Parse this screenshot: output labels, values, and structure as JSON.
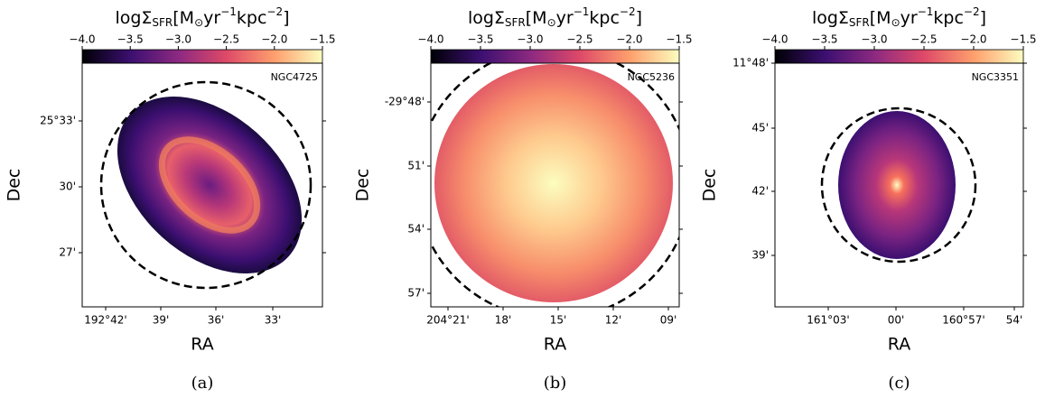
{
  "panels": [
    {
      "colorbar_label": [
        {
          "text": "logΣ"
        },
        {
          "text": "SFR",
          "style": "sub"
        },
        {
          "text": "[M"
        },
        {
          "text": "⊙",
          "style": "sub"
        },
        {
          "text": "yr"
        },
        {
          "text": "−1",
          "style": "sup"
        },
        {
          "text": "kpc"
        },
        {
          "text": "−2",
          "style": "sup"
        },
        {
          "text": "]"
        }
      ],
      "colorbar": {
        "range": [
          -4,
          -1.5
        ],
        "ticks": [
          {
            "value": -4,
            "label": "−4.0"
          },
          {
            "value": -3.5,
            "label": "−3.5"
          },
          {
            "value": -3,
            "label": "−3.0"
          },
          {
            "value": -2.5,
            "label": "−2.5"
          },
          {
            "value": -2,
            "label": "−2.0"
          },
          {
            "value": -1.5,
            "label": "−1.5"
          }
        ]
      },
      "name": "NGC4725",
      "yticks": [
        "25°33'",
        "30'",
        "27'"
      ],
      "xticks": [
        "192°42'",
        "39'",
        "36'",
        "33'"
      ],
      "ylabel": "Dec",
      "xlabel": "RA",
      "caption": "(a)"
    },
    {
      "colorbar_label": [
        {
          "text": "logΣ"
        },
        {
          "text": "SFR",
          "style": "sub"
        },
        {
          "text": "[M"
        },
        {
          "text": "⊙",
          "style": "sub"
        },
        {
          "text": "yr"
        },
        {
          "text": "−1",
          "style": "sup"
        },
        {
          "text": "kpc"
        },
        {
          "text": "−2",
          "style": "sup"
        },
        {
          "text": "]"
        }
      ],
      "colorbar": {
        "range": [
          -4,
          -1.5
        ],
        "ticks": [
          {
            "value": -4,
            "label": "−4.0"
          },
          {
            "value": -3.5,
            "label": "−3.5"
          },
          {
            "value": -3,
            "label": "−3.0"
          },
          {
            "value": -2.5,
            "label": "−2.5"
          },
          {
            "value": -2,
            "label": "−2.0"
          },
          {
            "value": -1.5,
            "label": "−1.5"
          }
        ]
      },
      "name": "NGC5236",
      "yticks": [
        "-29°48'",
        "51'",
        "54'",
        "57'"
      ],
      "xticks": [
        "204°21'",
        "18'",
        "15'",
        "12'",
        "09'"
      ],
      "ylabel": "Dec",
      "xlabel": "RA",
      "caption": "(b)"
    },
    {
      "colorbar_label": [
        {
          "text": "logΣ"
        },
        {
          "text": "SFR",
          "style": "sub"
        },
        {
          "text": "[M"
        },
        {
          "text": "⊙",
          "style": "sub"
        },
        {
          "text": "yr"
        },
        {
          "text": "−1",
          "style": "sup"
        },
        {
          "text": "kpc"
        },
        {
          "text": "−2",
          "style": "sup"
        },
        {
          "text": "]"
        }
      ],
      "colorbar": {
        "range": [
          -4,
          -1.5
        ],
        "ticks": [
          {
            "value": -4,
            "label": "−4.0"
          },
          {
            "value": -3.5,
            "label": "−3.5"
          },
          {
            "value": -3,
            "label": "−3.0"
          },
          {
            "value": -2.5,
            "label": "−2.5"
          },
          {
            "value": -2,
            "label": "−2.0"
          },
          {
            "value": -1.5,
            "label": "−1.5"
          }
        ]
      },
      "name": "NGC3351",
      "yticks": [
        "11°48'",
        "45'",
        "42'",
        "39'"
      ],
      "xticks": [
        "161°03'",
        "00'",
        "160°57'",
        "54'"
      ],
      "ylabel": "Dec",
      "xlabel": "RA",
      "caption": "(c)"
    }
  ]
}
